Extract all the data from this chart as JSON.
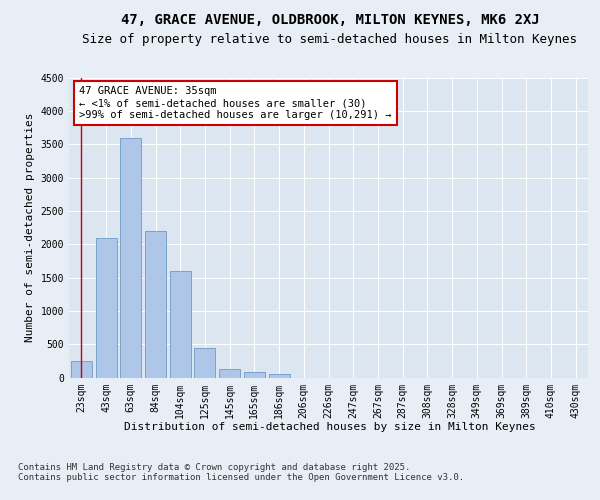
{
  "title_line1": "47, GRACE AVENUE, OLDBROOK, MILTON KEYNES, MK6 2XJ",
  "title_line2": "Size of property relative to semi-detached houses in Milton Keynes",
  "xlabel": "Distribution of semi-detached houses by size in Milton Keynes",
  "ylabel": "Number of semi-detached properties",
  "categories": [
    "23sqm",
    "43sqm",
    "63sqm",
    "84sqm",
    "104sqm",
    "125sqm",
    "145sqm",
    "165sqm",
    "186sqm",
    "206sqm",
    "226sqm",
    "247sqm",
    "267sqm",
    "287sqm",
    "308sqm",
    "328sqm",
    "349sqm",
    "369sqm",
    "389sqm",
    "410sqm",
    "430sqm"
  ],
  "values": [
    250,
    2100,
    3600,
    2200,
    1600,
    450,
    130,
    80,
    50,
    0,
    0,
    0,
    0,
    0,
    0,
    0,
    0,
    0,
    0,
    0,
    0
  ],
  "bar_color": "#aec6e8",
  "bar_edge_color": "#5a8fc0",
  "highlight_bar_index": 0,
  "highlight_line_color": "#cc0000",
  "annotation_text": "47 GRACE AVENUE: 35sqm\n← <1% of semi-detached houses are smaller (30)\n>99% of semi-detached houses are larger (10,291) →",
  "annotation_box_color": "#ffffff",
  "annotation_box_edge_color": "#cc0000",
  "ylim": [
    0,
    4500
  ],
  "yticks": [
    0,
    500,
    1000,
    1500,
    2000,
    2500,
    3000,
    3500,
    4000,
    4500
  ],
  "bg_color": "#e8eef5",
  "plot_bg_color": "#dce6f0",
  "footer_text": "Contains HM Land Registry data © Crown copyright and database right 2025.\nContains public sector information licensed under the Open Government Licence v3.0.",
  "title_fontsize": 10,
  "subtitle_fontsize": 9,
  "axis_label_fontsize": 8,
  "tick_fontsize": 7,
  "annotation_fontsize": 7.5,
  "footer_fontsize": 6.5
}
